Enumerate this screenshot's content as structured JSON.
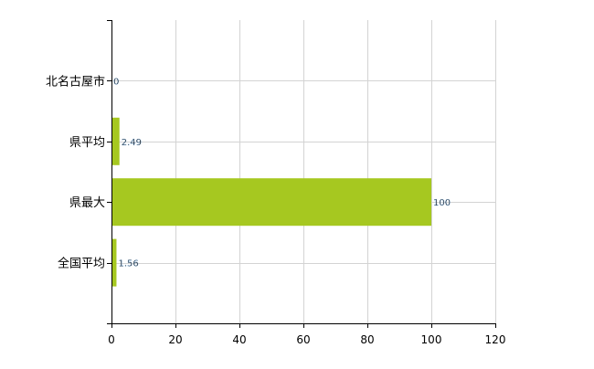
{
  "chart_data": {
    "type": "bar",
    "orientation": "horizontal",
    "categories": [
      "北名古屋市",
      "県平均",
      "県最大",
      "全国平均"
    ],
    "values": [
      0,
      2.49,
      100,
      1.56
    ],
    "data_labels": [
      "0",
      "2.49",
      "100",
      "1.56"
    ],
    "xlim": [
      0,
      120
    ],
    "xticks": [
      0,
      20,
      40,
      60,
      80,
      100,
      120
    ],
    "title": "",
    "xlabel": "",
    "ylabel": "",
    "grid": true,
    "bar_color": "#a6c820",
    "grid_color": "#d3d3d3"
  }
}
